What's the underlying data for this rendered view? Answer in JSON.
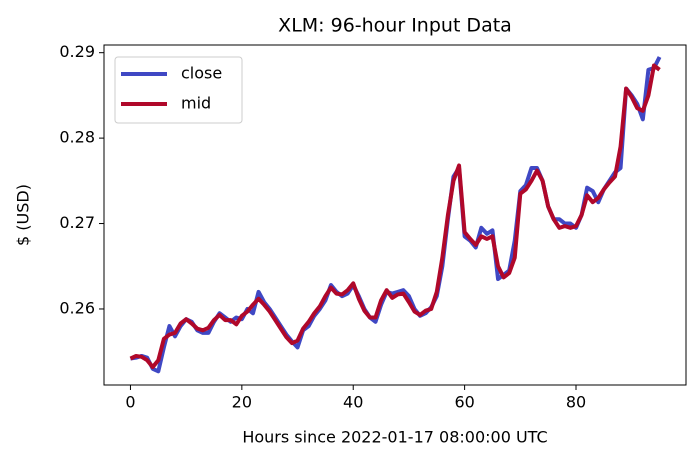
{
  "chart_data": {
    "type": "line",
    "title": "XLM: 96-hour Input Data",
    "xlabel": "Hours since 2022-01-17 08:00:00 UTC",
    "ylabel": "$ (USD)",
    "x": [
      0,
      1,
      2,
      3,
      4,
      5,
      6,
      7,
      8,
      9,
      10,
      11,
      12,
      13,
      14,
      15,
      16,
      17,
      18,
      19,
      20,
      21,
      22,
      23,
      24,
      25,
      26,
      27,
      28,
      29,
      30,
      31,
      32,
      33,
      34,
      35,
      36,
      37,
      38,
      39,
      40,
      41,
      42,
      43,
      44,
      45,
      46,
      47,
      48,
      49,
      50,
      51,
      52,
      53,
      54,
      55,
      56,
      57,
      58,
      59,
      60,
      61,
      62,
      63,
      64,
      65,
      66,
      67,
      68,
      69,
      70,
      71,
      72,
      73,
      74,
      75,
      76,
      77,
      78,
      79,
      80,
      81,
      82,
      83,
      84,
      85,
      86,
      87,
      88,
      89,
      90,
      91,
      92,
      93,
      94,
      95
    ],
    "series": [
      {
        "name": "close",
        "color": "#3f48c4",
        "values": [
          0.2542,
          0.2543,
          0.2545,
          0.2543,
          0.253,
          0.2527,
          0.2555,
          0.258,
          0.2568,
          0.258,
          0.2588,
          0.2585,
          0.2575,
          0.2572,
          0.2572,
          0.2585,
          0.2595,
          0.259,
          0.2585,
          0.259,
          0.2588,
          0.26,
          0.2595,
          0.262,
          0.2608,
          0.26,
          0.259,
          0.258,
          0.257,
          0.2562,
          0.2555,
          0.2575,
          0.258,
          0.2592,
          0.26,
          0.261,
          0.2628,
          0.262,
          0.2615,
          0.2618,
          0.2628,
          0.2615,
          0.26,
          0.259,
          0.2585,
          0.2605,
          0.262,
          0.2618,
          0.262,
          0.2622,
          0.2615,
          0.26,
          0.2592,
          0.2595,
          0.2602,
          0.2615,
          0.265,
          0.2705,
          0.2755,
          0.2765,
          0.2685,
          0.268,
          0.2672,
          0.2695,
          0.2688,
          0.2692,
          0.2635,
          0.264,
          0.2645,
          0.268,
          0.2738,
          0.2745,
          0.2765,
          0.2765,
          0.275,
          0.272,
          0.2705,
          0.2705,
          0.27,
          0.27,
          0.2695,
          0.271,
          0.2742,
          0.2738,
          0.2725,
          0.274,
          0.275,
          0.276,
          0.2765,
          0.2858,
          0.285,
          0.284,
          0.2822,
          0.288,
          0.2882,
          0.2895
        ]
      },
      {
        "name": "mid",
        "color": "#b0082a",
        "values": [
          0.2542,
          0.2545,
          0.2544,
          0.254,
          0.2532,
          0.254,
          0.2565,
          0.257,
          0.2572,
          0.2583,
          0.2588,
          0.2583,
          0.2577,
          0.2575,
          0.2578,
          0.2587,
          0.2593,
          0.2587,
          0.2587,
          0.2582,
          0.2592,
          0.2597,
          0.2605,
          0.2612,
          0.2605,
          0.2597,
          0.2587,
          0.2577,
          0.2567,
          0.256,
          0.2563,
          0.2577,
          0.2585,
          0.2595,
          0.2603,
          0.2615,
          0.2625,
          0.2618,
          0.2617,
          0.2622,
          0.263,
          0.2612,
          0.2598,
          0.259,
          0.259,
          0.261,
          0.2622,
          0.2613,
          0.2617,
          0.2618,
          0.2608,
          0.2597,
          0.2593,
          0.2598,
          0.26,
          0.262,
          0.266,
          0.271,
          0.275,
          0.2768,
          0.269,
          0.2682,
          0.2675,
          0.2685,
          0.2682,
          0.2685,
          0.265,
          0.2637,
          0.2642,
          0.266,
          0.2735,
          0.274,
          0.275,
          0.2762,
          0.275,
          0.272,
          0.2705,
          0.2695,
          0.2697,
          0.2695,
          0.2697,
          0.271,
          0.2733,
          0.2725,
          0.273,
          0.274,
          0.2748,
          0.2755,
          0.279,
          0.2858,
          0.2848,
          0.2835,
          0.2832,
          0.285,
          0.2885,
          0.288
        ]
      }
    ],
    "xlim": [
      -4.75,
      99.75
    ],
    "xticks": [
      0,
      20,
      40,
      60,
      80
    ],
    "ylim": [
      0.2511,
      0.2909
    ],
    "yticks": [
      0.26,
      0.27,
      0.28,
      0.29
    ],
    "grid": false,
    "legend": "upper left"
  }
}
